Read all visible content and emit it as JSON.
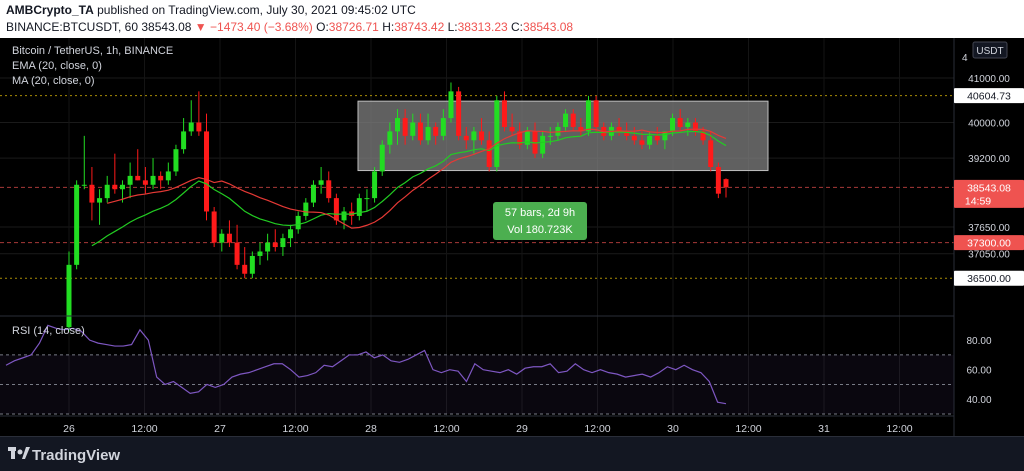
{
  "header": {
    "author": "AMBCrypto_TA",
    "published_text": "published on TradingView.com, July 30, 2021 09:45:02 UTC",
    "symbol": "BINANCE:BTCUSDT, 60",
    "last": "38543.08",
    "change": "−1473.40 (−3.68%)",
    "o_label": "O:",
    "o_val": "38726.71",
    "h_label": "H:",
    "h_val": "38743.42",
    "l_label": "L:",
    "l_val": "38313.23",
    "c_label": "C:",
    "c_val": "38543.08"
  },
  "legend": {
    "title": "Bitcoin / TetherUS, 1h, BINANCE",
    "ema": "EMA (20, close, 0)",
    "ma": "MA (20, close, 0)",
    "rsi": "RSI (14, close)"
  },
  "currency": "USDT",
  "price_labels": [
    {
      "value": 40604.73,
      "text": "40604.73",
      "color": "#ffffff",
      "textcolor": "#131722"
    },
    {
      "value": 38543.08,
      "text": "38543.08",
      "sub": "14:59",
      "color": "#ef5350",
      "textcolor": "#ffffff"
    },
    {
      "value": 37300.0,
      "text": "37300.00",
      "color": "#ef5350",
      "textcolor": "#ffffff"
    },
    {
      "value": 36500.0,
      "text": "36500.00",
      "color": "#ffffff",
      "textcolor": "#131722"
    }
  ],
  "measure": {
    "line1": "57 bars, 2d 9h",
    "line2": "Vol 180.723K"
  },
  "footer": {
    "brand": "TradingView"
  },
  "colors": {
    "up": "#26a69a",
    "up_candle": "#22dd22",
    "down": "#ff1a1a",
    "ema": "#22cc22",
    "ma": "#e53935",
    "rsi": "#7e57c2",
    "box": "#808080"
  },
  "chart_data": {
    "type": "candlestick",
    "y_ticks": [
      41000.0,
      40000.0,
      39200.0,
      37650.0,
      37050.0
    ],
    "y_tick_labels": [
      "41000.00",
      "40000.00",
      "39200.00",
      "37650.00",
      "37050.00"
    ],
    "ylim": [
      35650,
      41900
    ],
    "x_tick_labels": [
      "26",
      "12:00",
      "27",
      "12:00",
      "28",
      "12:00",
      "29",
      "12:00",
      "30",
      "12:00",
      "31",
      "12:00"
    ],
    "rsi_ticks": [
      80.0,
      60.0,
      40.0
    ],
    "rsi_tick_labels": [
      "80.00",
      "60.00",
      "40.00"
    ],
    "rsi_ylim": [
      30,
      95
    ],
    "rsi_levels": [
      70,
      50,
      30
    ],
    "rect_range": [
      38920,
      40480
    ],
    "candles": [
      [
        35400,
        37100,
        35300,
        36800
      ],
      [
        36800,
        38700,
        36700,
        38600
      ],
      [
        38600,
        39700,
        38500,
        38600
      ],
      [
        38600,
        39000,
        37800,
        38200
      ],
      [
        38200,
        38500,
        37700,
        38300
      ],
      [
        38300,
        38800,
        38200,
        38600
      ],
      [
        38600,
        39300,
        38400,
        38500
      ],
      [
        38500,
        38700,
        38200,
        38600
      ],
      [
        38600,
        39100,
        38300,
        38800
      ],
      [
        38800,
        39400,
        38700,
        38700
      ],
      [
        38700,
        39000,
        38400,
        38600
      ],
      [
        38600,
        39200,
        38500,
        38800
      ],
      [
        38800,
        38900,
        38500,
        38700
      ],
      [
        38700,
        39100,
        38600,
        38900
      ],
      [
        38900,
        39500,
        38800,
        39400
      ],
      [
        39400,
        40100,
        39300,
        39800
      ],
      [
        39800,
        40500,
        39700,
        40000
      ],
      [
        40000,
        40700,
        39700,
        39800
      ],
      [
        39800,
        40200,
        37800,
        38000
      ],
      [
        38000,
        38100,
        37200,
        37300
      ],
      [
        37300,
        37600,
        37100,
        37500
      ],
      [
        37500,
        37800,
        37200,
        37300
      ],
      [
        37300,
        37700,
        36700,
        36800
      ],
      [
        36800,
        37200,
        36500,
        36600
      ],
      [
        36600,
        37100,
        36500,
        37000
      ],
      [
        37000,
        37300,
        36800,
        37100
      ],
      [
        37100,
        37500,
        36900,
        37300
      ],
      [
        37300,
        37600,
        37100,
        37200
      ],
      [
        37200,
        37500,
        37000,
        37400
      ],
      [
        37400,
        37700,
        37200,
        37600
      ],
      [
        37600,
        38000,
        37500,
        37900
      ],
      [
        37900,
        38300,
        37800,
        38200
      ],
      [
        38200,
        38700,
        38100,
        38600
      ],
      [
        38600,
        39000,
        38400,
        38700
      ],
      [
        38700,
        38900,
        38200,
        38300
      ],
      [
        38300,
        38400,
        37700,
        37800
      ],
      [
        37800,
        38100,
        37600,
        38000
      ],
      [
        38000,
        38200,
        37700,
        37900
      ],
      [
        37900,
        38400,
        37800,
        38300
      ],
      [
        38300,
        38500,
        38000,
        38300
      ],
      [
        38300,
        39000,
        38200,
        38900
      ],
      [
        38900,
        39600,
        38800,
        39500
      ],
      [
        39500,
        40000,
        39300,
        39800
      ],
      [
        39800,
        40300,
        39500,
        40100
      ],
      [
        40100,
        40300,
        39500,
        39700
      ],
      [
        39700,
        40200,
        39600,
        40000
      ],
      [
        40000,
        40200,
        39500,
        39600
      ],
      [
        39600,
        40200,
        39500,
        39900
      ],
      [
        39900,
        40000,
        39500,
        39700
      ],
      [
        39700,
        40300,
        39600,
        40100
      ],
      [
        40100,
        40900,
        40000,
        40700
      ],
      [
        40700,
        40800,
        39600,
        39700
      ],
      [
        39700,
        39900,
        39400,
        39600
      ],
      [
        39600,
        39900,
        39300,
        39800
      ],
      [
        39800,
        40100,
        39500,
        39600
      ],
      [
        39600,
        39800,
        38900,
        39000
      ],
      [
        39000,
        40600,
        38900,
        40500
      ],
      [
        40500,
        40700,
        39800,
        39900
      ],
      [
        39900,
        40200,
        39700,
        39800
      ],
      [
        39800,
        40000,
        39400,
        39500
      ],
      [
        39500,
        39900,
        39400,
        39800
      ],
      [
        39800,
        40000,
        39200,
        39300
      ],
      [
        39300,
        39800,
        39200,
        39700
      ],
      [
        39700,
        39900,
        39500,
        39700
      ],
      [
        39700,
        40000,
        39600,
        39900
      ],
      [
        39900,
        40300,
        39800,
        40200
      ],
      [
        40200,
        40300,
        39800,
        39900
      ],
      [
        39900,
        40100,
        39700,
        39800
      ],
      [
        39800,
        40600,
        39700,
        40500
      ],
      [
        40500,
        40600,
        39800,
        39900
      ],
      [
        39900,
        40000,
        39600,
        39700
      ],
      [
        39700,
        40000,
        39600,
        39900
      ],
      [
        39900,
        40100,
        39700,
        39800
      ],
      [
        39800,
        40000,
        39600,
        39700
      ],
      [
        39700,
        39900,
        39500,
        39600
      ],
      [
        39600,
        39800,
        39400,
        39500
      ],
      [
        39500,
        39800,
        39400,
        39700
      ],
      [
        39700,
        39900,
        39500,
        39600
      ],
      [
        39600,
        39800,
        39400,
        39800
      ],
      [
        39800,
        40200,
        39700,
        40100
      ],
      [
        40100,
        40300,
        39800,
        39900
      ],
      [
        39900,
        40100,
        39700,
        40000
      ],
      [
        40000,
        40100,
        39700,
        39800
      ],
      [
        39800,
        39900,
        39500,
        39600
      ],
      [
        39600,
        39800,
        38900,
        39000
      ],
      [
        39000,
        39100,
        38300,
        38400
      ],
      [
        38726.71,
        38743.42,
        38313.23,
        38543.08
      ]
    ],
    "rsi": [
      63,
      66,
      68,
      70,
      78,
      90,
      88,
      87,
      88,
      86,
      80,
      78,
      77,
      76,
      76,
      77,
      87,
      80,
      55,
      50,
      52,
      48,
      44,
      45,
      50,
      48,
      50,
      55,
      57,
      58,
      60,
      62,
      64,
      64,
      60,
      55,
      56,
      58,
      63,
      62,
      66,
      70,
      70,
      72,
      68,
      70,
      66,
      65,
      67,
      70,
      73,
      60,
      58,
      60,
      59,
      52,
      64,
      60,
      59,
      58,
      60,
      57,
      61,
      62,
      62,
      64,
      58,
      59,
      64,
      60,
      58,
      60,
      58,
      57,
      55,
      56,
      57,
      55,
      58,
      62,
      60,
      63,
      60,
      58,
      52,
      38,
      37
    ]
  }
}
